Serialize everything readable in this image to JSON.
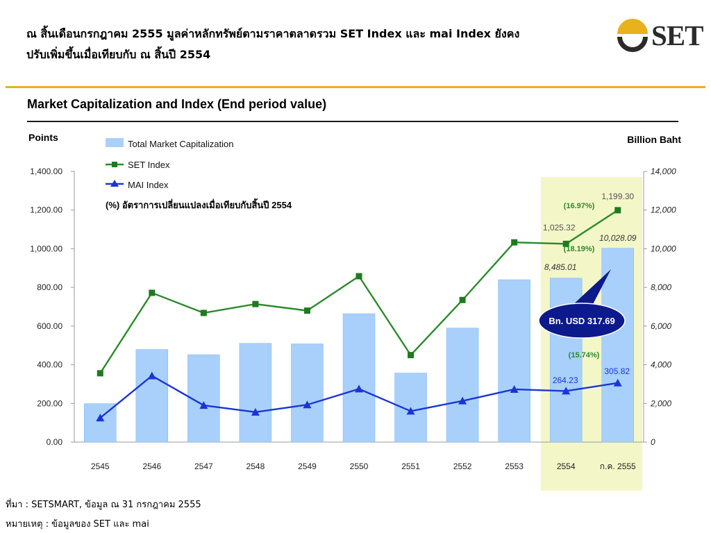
{
  "header": {
    "line1": "ณ สิ้นเดือนกรกฎาคม 2555 มูลค่าหลักทรัพย์ตามราคาตลาดรวม SET Index และ mai Index ยังคง",
    "line2": "ปรับเพิ่มขึ้นเมื่อเทียบกับ ณ สิ้นปี 2554"
  },
  "logo": {
    "text": "SET"
  },
  "chart_title": "Market Capitalization and Index (End period value)",
  "footer": {
    "source": "ที่มา : SETSMART, ข้อมูล ณ 31 กรกฎาคม 2555",
    "note": "หมายเหตุ : ข้อมูลของ SET และ mai"
  },
  "colors": {
    "bar": "#a8d0fb",
    "bar_stroke": "#7fb3ee",
    "set_line": "#2a8a2a",
    "set_marker": "#1f7a1f",
    "mai_line": "#1a35d6",
    "highlight": "#f3f7c8",
    "gold": "#e8b21c",
    "callout": "#0d1a8c"
  },
  "chart_data": {
    "type": "bar",
    "categories": [
      "2545",
      "2546",
      "2547",
      "2548",
      "2549",
      "2550",
      "2551",
      "2552",
      "2553",
      "2554",
      "ก.ค. 2555"
    ],
    "left_axis": {
      "label": "Points",
      "min": 0,
      "max": 1400,
      "step": 200,
      "ticks": [
        "0.00",
        "200.00",
        "400.00",
        "600.00",
        "800.00",
        "1,000.00",
        "1,200.00",
        "1,400.00"
      ]
    },
    "right_axis": {
      "label": "Billion Baht",
      "min": 0,
      "max": 14000,
      "step": 2000,
      "ticks": [
        "0",
        "2,000",
        "4,000",
        "6,000",
        "8,000",
        "10,000",
        "12,000",
        "14,000"
      ]
    },
    "series": [
      {
        "name": "Total Market Capitalization",
        "type": "bar",
        "axis": "right",
        "values": [
          1990,
          4790,
          4520,
          5110,
          5080,
          6640,
          3570,
          5900,
          8400,
          8485.01,
          10028.09
        ]
      },
      {
        "name": "SET Index",
        "type": "line",
        "axis": "left",
        "values": [
          356,
          772,
          668,
          714,
          680,
          858,
          450,
          735,
          1033,
          1025.32,
          1199.3
        ]
      },
      {
        "name": "MAI Index",
        "type": "line",
        "axis": "left",
        "values": [
          125,
          343,
          190,
          155,
          193,
          275,
          160,
          213,
          273,
          264.23,
          305.82
        ]
      }
    ],
    "value_labels": [
      {
        "text": "1,199.30",
        "series": "SET Index",
        "category": "ก.ค. 2555",
        "color": "#555555",
        "italic": false
      },
      {
        "text": "1,025.32",
        "series": "SET Index",
        "category": "2554",
        "color": "#555555",
        "italic": false
      },
      {
        "text": "10,028.09",
        "series": "Total Market Capitalization",
        "category": "ก.ค. 2555",
        "color": "#333333",
        "italic": true
      },
      {
        "text": "8,485.01",
        "series": "Total Market Capitalization",
        "category": "2554",
        "color": "#333333",
        "italic": true
      },
      {
        "text": "264.23",
        "series": "MAI Index",
        "category": "2554",
        "color": "#1a35d6",
        "italic": false
      },
      {
        "text": "305.82",
        "series": "MAI Index",
        "category": "ก.ค. 2555",
        "color": "#1a35d6",
        "italic": false
      }
    ],
    "annotations": {
      "pct_note": "(%)  อัตราการเปลี่ยนแปลงเมื่อเทียบกับสิ้นปี 2554",
      "set_change": "(16.97%)",
      "cap_change": "(18.19%)",
      "mai_change": "(15.74%)",
      "callout": "Bn. USD 317.69"
    },
    "highlighted_categories": [
      "2554",
      "ก.ค. 2555"
    ],
    "grid": false,
    "legend_position": "top-left"
  }
}
